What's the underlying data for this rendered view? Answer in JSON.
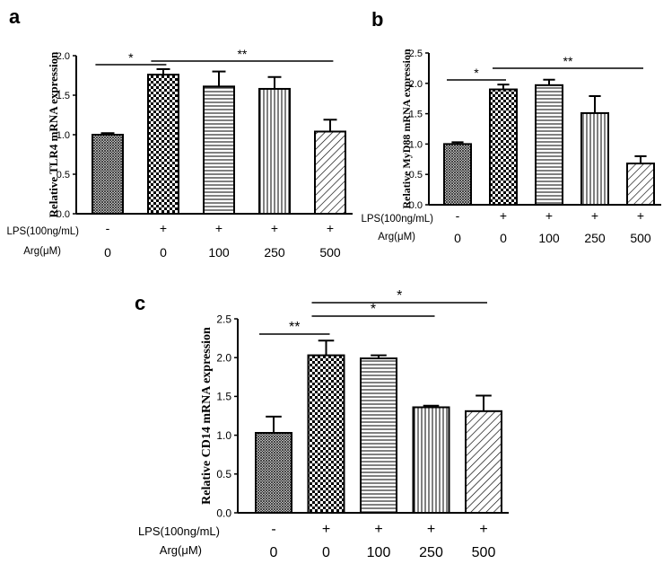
{
  "figure": {
    "row_labels": {
      "lps": "LPS(100ng/mL)",
      "arg": "Arg(μM)"
    }
  },
  "chart_data": [
    {
      "panel": "a",
      "type": "bar",
      "ylabel": "Relative TLR4  mRNA expression",
      "ylim": [
        0,
        2.0
      ],
      "yticks": [
        "0.0",
        "0.5",
        "1.0",
        "1.5",
        "2.0"
      ],
      "lps": [
        "-",
        "+",
        "+",
        "+",
        "+"
      ],
      "arg": [
        "0",
        "0",
        "100",
        "250",
        "500"
      ],
      "values": [
        1.0,
        1.76,
        1.61,
        1.58,
        1.04
      ],
      "errors": [
        0.02,
        0.07,
        0.19,
        0.15,
        0.15
      ],
      "patterns": [
        "crosshatch",
        "checker",
        "horizontal",
        "vertical",
        "diagonal"
      ],
      "significance": [
        {
          "from": 0,
          "to": 1,
          "label": "*"
        },
        {
          "from": 1,
          "to": 4,
          "label": "**"
        }
      ]
    },
    {
      "panel": "b",
      "type": "bar",
      "ylabel": "Relative MyD88 mRNA expression",
      "ylim": [
        0,
        2.5
      ],
      "yticks": [
        "0.0",
        "0.5",
        "1.0",
        "1.5",
        "2.0",
        "2.5"
      ],
      "lps": [
        "-",
        "+",
        "+",
        "+",
        "+"
      ],
      "arg": [
        "0",
        "0",
        "100",
        "250",
        "500"
      ],
      "values": [
        1.0,
        1.9,
        1.97,
        1.51,
        0.68
      ],
      "errors": [
        0.03,
        0.08,
        0.09,
        0.28,
        0.12
      ],
      "patterns": [
        "crosshatch",
        "checker",
        "horizontal",
        "vertical",
        "diagonal"
      ],
      "significance": [
        {
          "from": 0,
          "to": 1,
          "label": "*"
        },
        {
          "from": 1,
          "to": 4,
          "label": "**"
        }
      ]
    },
    {
      "panel": "c",
      "type": "bar",
      "ylabel": "Relative CD14 mRNA expression",
      "ylim": [
        0,
        2.5
      ],
      "yticks": [
        "0.0",
        "0.5",
        "1.0",
        "1.5",
        "2.0",
        "2.5"
      ],
      "lps": [
        "-",
        "+",
        "+",
        "+",
        "+"
      ],
      "arg": [
        "0",
        "0",
        "100",
        "250",
        "500"
      ],
      "values": [
        1.03,
        2.03,
        1.99,
        1.36,
        1.31
      ],
      "errors": [
        0.21,
        0.19,
        0.04,
        0.02,
        0.2
      ],
      "patterns": [
        "crosshatch",
        "checker",
        "horizontal",
        "vertical",
        "diagonal"
      ],
      "significance": [
        {
          "from": 0,
          "to": 1,
          "label": "**"
        },
        {
          "from": 1,
          "to": 3,
          "label": "*"
        },
        {
          "from": 1,
          "to": 4,
          "label": "*"
        }
      ]
    }
  ]
}
